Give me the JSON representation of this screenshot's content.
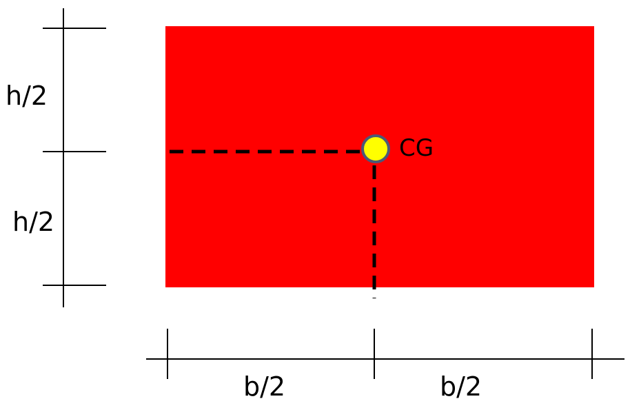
{
  "diagram": {
    "labels": {
      "h_upper": "h/2",
      "h_lower": "h/2",
      "b_left": "b/2",
      "b_right": "b/2",
      "centroid": "CG"
    },
    "colors": {
      "rectangle_fill": "#ff0000",
      "centroid_fill": "#ffff00",
      "centroid_stroke": "#4a5a78",
      "line": "#000000"
    }
  }
}
